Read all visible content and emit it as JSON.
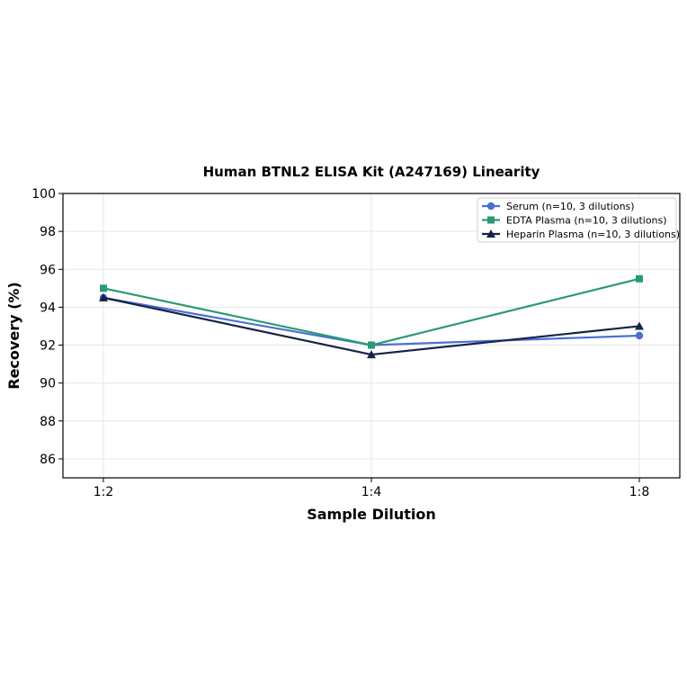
{
  "chart_data": {
    "type": "line",
    "title": "Human BTNL2 ELISA Kit (A247169) Linearity",
    "xlabel": "Sample Dilution",
    "ylabel": "Recovery (%)",
    "categories": [
      "1:2",
      "1:4",
      "1:8"
    ],
    "ylim": [
      85,
      100
    ],
    "yticks": [
      86,
      88,
      90,
      92,
      94,
      96,
      98,
      100
    ],
    "grid": true,
    "legend_position": "top-right",
    "series": [
      {
        "name": "Serum (n=10, 3 dilutions)",
        "values": [
          94.5,
          92.0,
          92.5
        ],
        "color": "#4a6fd6",
        "marker": "circle"
      },
      {
        "name": "EDTA Plasma (n=10, 3 dilutions)",
        "values": [
          95.0,
          92.0,
          95.5
        ],
        "color": "#2a9a72",
        "marker": "square"
      },
      {
        "name": "Heparin Plasma (n=10, 3 dilutions)",
        "values": [
          94.5,
          91.5,
          93.0
        ],
        "color": "#172347",
        "marker": "triangle"
      }
    ]
  }
}
